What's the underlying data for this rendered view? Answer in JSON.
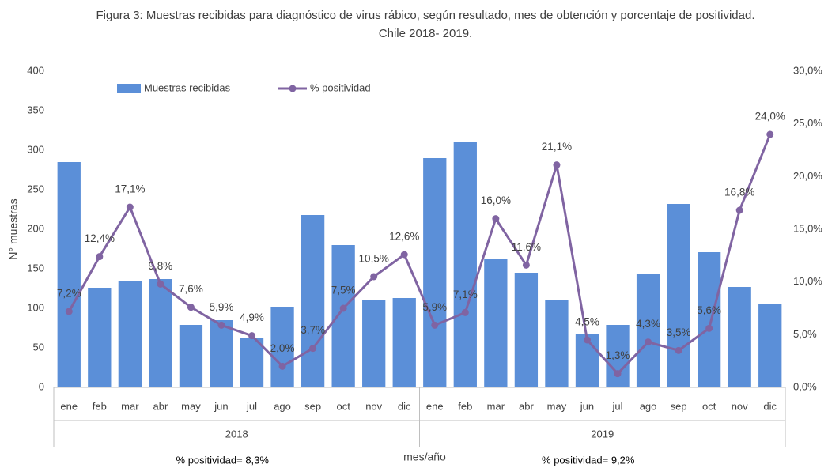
{
  "chart_data": {
    "type": "bar",
    "title": [
      "Figura 3: Muestras recibidas para diagnóstico de virus rábico, según resultado, mes de obtención y porcentaje de positividad.",
      "Chile 2018- 2019."
    ],
    "xlabel": "mes/año",
    "ylabel": "N° muestras",
    "categories": [
      "ene",
      "feb",
      "mar",
      "abr",
      "may",
      "jun",
      "jul",
      "ago",
      "sep",
      "oct",
      "nov",
      "dic",
      "ene",
      "feb",
      "mar",
      "abr",
      "may",
      "jun",
      "jul",
      "ago",
      "sep",
      "oct",
      "nov",
      "dic"
    ],
    "groups": [
      "2018",
      "2019"
    ],
    "group_notes": [
      "% positividad= 8,3%",
      "% positividad= 9,2%"
    ],
    "series": [
      {
        "name": "Muestras recibidas",
        "type": "bar",
        "color": "#5b8fd8",
        "values": [
          285,
          126,
          135,
          137,
          79,
          85,
          62,
          102,
          218,
          180,
          110,
          113,
          290,
          311,
          162,
          145,
          110,
          68,
          79,
          144,
          232,
          171,
          127,
          106
        ]
      },
      {
        "name": "% positividad",
        "type": "line",
        "axis": "y2",
        "color": "#8064a2",
        "values": [
          7.2,
          12.4,
          17.1,
          9.8,
          7.6,
          5.9,
          4.9,
          2.0,
          3.7,
          7.5,
          10.5,
          12.6,
          5.9,
          7.1,
          16.0,
          11.6,
          21.1,
          4.5,
          1.3,
          4.3,
          3.5,
          5.6,
          16.8,
          24.0
        ],
        "value_labels": [
          "7,2%",
          "12,4%",
          "17,1%",
          "9,8%",
          "7,6%",
          "5,9%",
          "4,9%",
          "2,0%",
          "3,7%",
          "7,5%",
          "10,5%",
          "12,6%",
          "5,9%",
          "7,1%",
          "16,0%",
          "11,6%",
          "21,1%",
          "4,5%",
          "1,3%",
          "4,3%",
          "3,5%",
          "5,6%",
          "16,8%",
          "24,0%"
        ]
      }
    ],
    "ylim": [
      0,
      400
    ],
    "yticks": [
      0,
      50,
      100,
      150,
      200,
      250,
      300,
      350,
      400
    ],
    "y2lim": [
      0,
      30
    ],
    "y2ticks": [
      {
        "value": 0,
        "label": "0,0%"
      },
      {
        "value": 5,
        "label": "5,0%"
      },
      {
        "value": 10,
        "label": "10,0%"
      },
      {
        "value": 15,
        "label": "15,0%"
      },
      {
        "value": 20,
        "label": "20,0%"
      },
      {
        "value": 25,
        "label": "25,0%"
      },
      {
        "value": 30,
        "label": "30,0%"
      }
    ],
    "legend": "top-left",
    "grid": false
  }
}
